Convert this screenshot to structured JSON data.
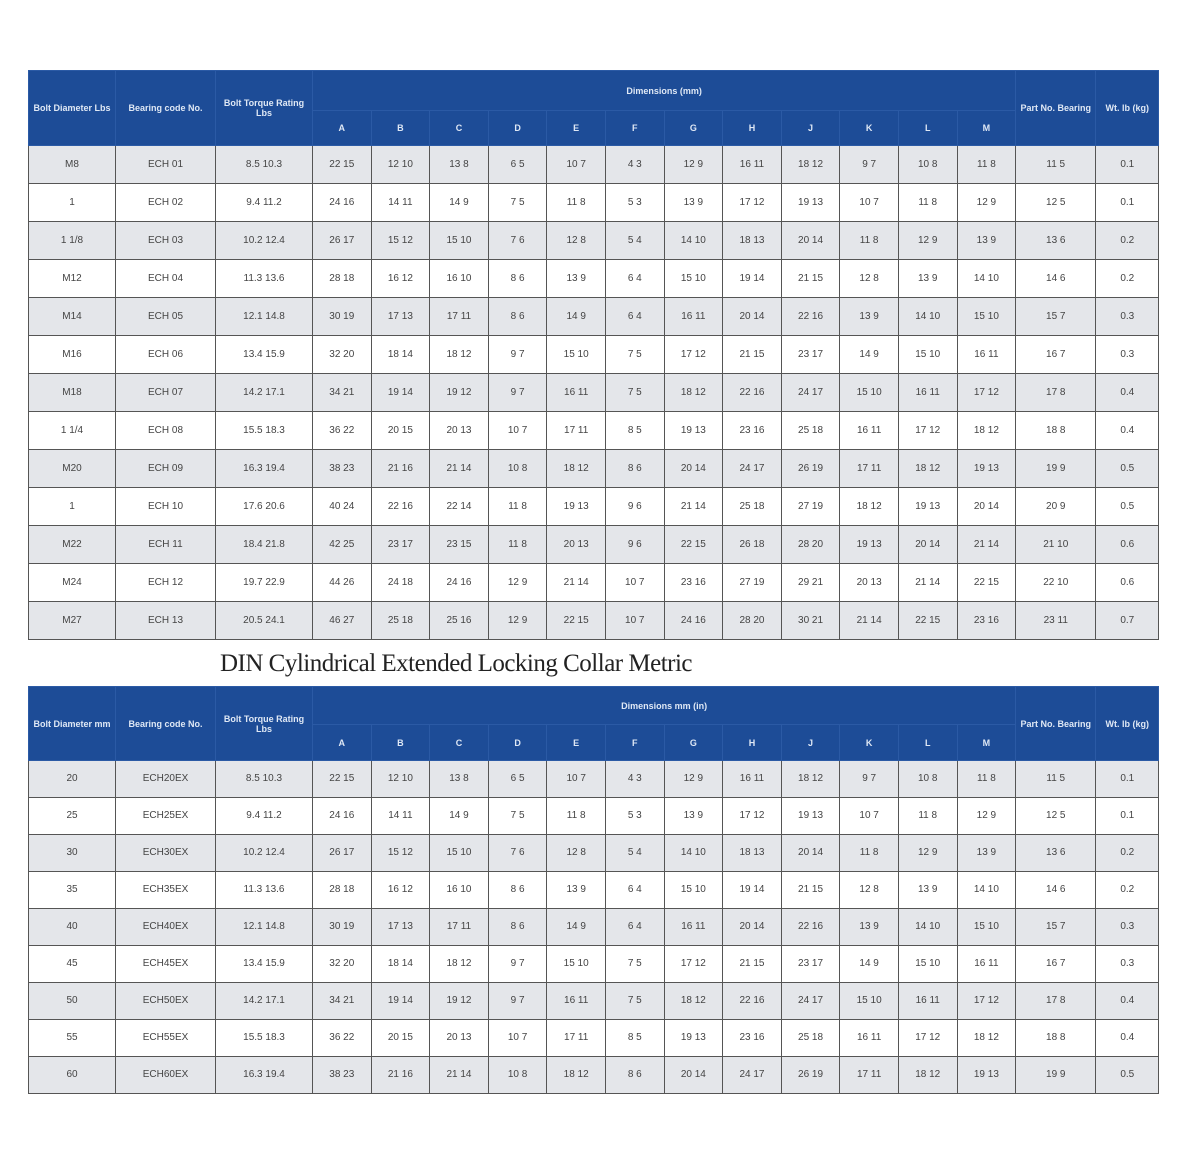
{
  "title": "DIN Cylindrical Extended Locking Collar Metric",
  "table1": {
    "headers": [
      "Bolt Diameter Lbs",
      "Bearing code No.",
      "Bolt Torque Rating Lbs",
      "Dimensions (mm)",
      "Part No. Bearing",
      "Wt. lb (kg)"
    ],
    "letters": [
      "A",
      "B",
      "C",
      "D",
      "E",
      "F",
      "G",
      "H",
      "J",
      "K",
      "L",
      "M"
    ],
    "rows": [
      [
        "M8",
        "ECH 01",
        "8.5 10.3",
        "22 15",
        "12 10",
        "13 8",
        "6 5",
        "10 7",
        "4 3",
        "12 9",
        "16 11",
        "18 12",
        "9 7",
        "10 8",
        "11 8",
        "11 5",
        "0.1"
      ],
      [
        "1",
        "ECH 02",
        "9.4 11.2",
        "24 16",
        "14 11",
        "14 9",
        "7 5",
        "11 8",
        "5 3",
        "13 9",
        "17 12",
        "19 13",
        "10 7",
        "11 8",
        "12 9",
        "12 5",
        "0.1"
      ],
      [
        "1 1/8",
        "ECH 03",
        "10.2 12.4",
        "26 17",
        "15 12",
        "15 10",
        "7 6",
        "12 8",
        "5 4",
        "14 10",
        "18 13",
        "20 14",
        "11 8",
        "12 9",
        "13 9",
        "13 6",
        "0.2"
      ],
      [
        "M12",
        "ECH 04",
        "11.3 13.6",
        "28 18",
        "16 12",
        "16 10",
        "8 6",
        "13 9",
        "6 4",
        "15 10",
        "19 14",
        "21 15",
        "12 8",
        "13 9",
        "14 10",
        "14 6",
        "0.2"
      ],
      [
        "M14",
        "ECH 05",
        "12.1 14.8",
        "30 19",
        "17 13",
        "17 11",
        "8 6",
        "14 9",
        "6 4",
        "16 11",
        "20 14",
        "22 16",
        "13 9",
        "14 10",
        "15 10",
        "15 7",
        "0.3"
      ],
      [
        "M16",
        "ECH 06",
        "13.4 15.9",
        "32 20",
        "18 14",
        "18 12",
        "9 7",
        "15 10",
        "7 5",
        "17 12",
        "21 15",
        "23 17",
        "14 9",
        "15 10",
        "16 11",
        "16 7",
        "0.3"
      ],
      [
        "M18",
        "ECH 07",
        "14.2 17.1",
        "34 21",
        "19 14",
        "19 12",
        "9 7",
        "16 11",
        "7 5",
        "18 12",
        "22 16",
        "24 17",
        "15 10",
        "16 11",
        "17 12",
        "17 8",
        "0.4"
      ],
      [
        "1 1/4",
        "ECH 08",
        "15.5 18.3",
        "36 22",
        "20 15",
        "20 13",
        "10 7",
        "17 11",
        "8 5",
        "19 13",
        "23 16",
        "25 18",
        "16 11",
        "17 12",
        "18 12",
        "18 8",
        "0.4"
      ],
      [
        "M20",
        "ECH 09",
        "16.3 19.4",
        "38 23",
        "21 16",
        "21 14",
        "10 8",
        "18 12",
        "8 6",
        "20 14",
        "24 17",
        "26 19",
        "17 11",
        "18 12",
        "19 13",
        "19 9",
        "0.5"
      ],
      [
        "1",
        "ECH 10",
        "17.6 20.6",
        "40 24",
        "22 16",
        "22 14",
        "11 8",
        "19 13",
        "9 6",
        "21 14",
        "25 18",
        "27 19",
        "18 12",
        "19 13",
        "20 14",
        "20 9",
        "0.5"
      ],
      [
        "M22",
        "ECH 11",
        "18.4 21.8",
        "42 25",
        "23 17",
        "23 15",
        "11 8",
        "20 13",
        "9 6",
        "22 15",
        "26 18",
        "28 20",
        "19 13",
        "20 14",
        "21 14",
        "21 10",
        "0.6"
      ],
      [
        "M24",
        "ECH 12",
        "19.7 22.9",
        "44 26",
        "24 18",
        "24 16",
        "12 9",
        "21 14",
        "10 7",
        "23 16",
        "27 19",
        "29 21",
        "20 13",
        "21 14",
        "22 15",
        "22 10",
        "0.6"
      ],
      [
        "M27",
        "ECH 13",
        "20.5 24.1",
        "46 27",
        "25 18",
        "25 16",
        "12 9",
        "22 15",
        "10 7",
        "24 16",
        "28 20",
        "30 21",
        "21 14",
        "22 15",
        "23 16",
        "23 11",
        "0.7"
      ]
    ]
  },
  "table2": {
    "headers": [
      "Bolt Diameter mm",
      "Bearing code No.",
      "Bolt Torque Rating Lbs",
      "Dimensions mm (in)",
      "Part No. Bearing",
      "Wt. lb (kg)"
    ],
    "letters": [
      "A",
      "B",
      "C",
      "D",
      "E",
      "F",
      "G",
      "H",
      "J",
      "K",
      "L",
      "M"
    ],
    "rows": [
      [
        "20",
        "ECH20EX",
        "8.5 10.3",
        "22 15",
        "12 10",
        "13 8",
        "6 5",
        "10 7",
        "4 3",
        "12 9",
        "16 11",
        "18 12",
        "9 7",
        "10 8",
        "11 8",
        "11 5",
        "0.1"
      ],
      [
        "25",
        "ECH25EX",
        "9.4 11.2",
        "24 16",
        "14 11",
        "14 9",
        "7 5",
        "11 8",
        "5 3",
        "13 9",
        "17 12",
        "19 13",
        "10 7",
        "11 8",
        "12 9",
        "12 5",
        "0.1"
      ],
      [
        "30",
        "ECH30EX",
        "10.2 12.4",
        "26 17",
        "15 12",
        "15 10",
        "7 6",
        "12 8",
        "5 4",
        "14 10",
        "18 13",
        "20 14",
        "11 8",
        "12 9",
        "13 9",
        "13 6",
        "0.2"
      ],
      [
        "35",
        "ECH35EX",
        "11.3 13.6",
        "28 18",
        "16 12",
        "16 10",
        "8 6",
        "13 9",
        "6 4",
        "15 10",
        "19 14",
        "21 15",
        "12 8",
        "13 9",
        "14 10",
        "14 6",
        "0.2"
      ],
      [
        "40",
        "ECH40EX",
        "12.1 14.8",
        "30 19",
        "17 13",
        "17 11",
        "8 6",
        "14 9",
        "6 4",
        "16 11",
        "20 14",
        "22 16",
        "13 9",
        "14 10",
        "15 10",
        "15 7",
        "0.3"
      ],
      [
        "45",
        "ECH45EX",
        "13.4 15.9",
        "32 20",
        "18 14",
        "18 12",
        "9 7",
        "15 10",
        "7 5",
        "17 12",
        "21 15",
        "23 17",
        "14 9",
        "15 10",
        "16 11",
        "16 7",
        "0.3"
      ],
      [
        "50",
        "ECH50EX",
        "14.2 17.1",
        "34 21",
        "19 14",
        "19 12",
        "9 7",
        "16 11",
        "7 5",
        "18 12",
        "22 16",
        "24 17",
        "15 10",
        "16 11",
        "17 12",
        "17 8",
        "0.4"
      ],
      [
        "55",
        "ECH55EX",
        "15.5 18.3",
        "36 22",
        "20 15",
        "20 13",
        "10 7",
        "17 11",
        "8 5",
        "19 13",
        "23 16",
        "25 18",
        "16 11",
        "17 12",
        "18 12",
        "18 8",
        "0.4"
      ],
      [
        "60",
        "ECH60EX",
        "16.3 19.4",
        "38 23",
        "21 16",
        "21 14",
        "10 8",
        "18 12",
        "8 6",
        "20 14",
        "24 17",
        "26 19",
        "17 11",
        "18 12",
        "19 13",
        "19 9",
        "0.5"
      ]
    ]
  }
}
